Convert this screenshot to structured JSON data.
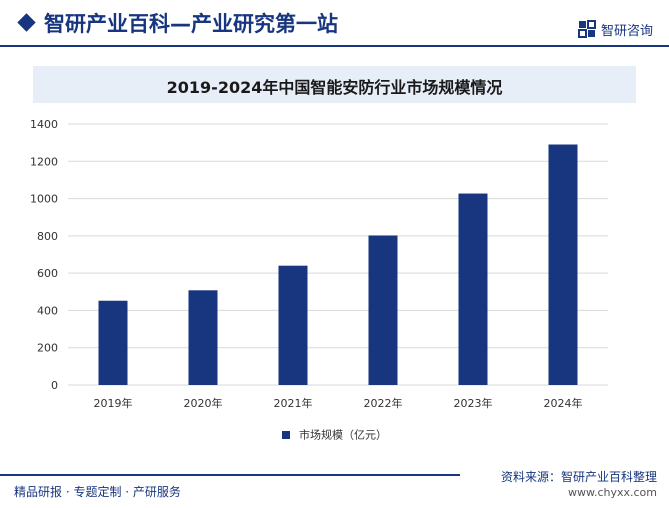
{
  "header": {
    "title": "智研产业百科—产业研究第一站",
    "brand": "智研咨询"
  },
  "chart_data": {
    "type": "bar",
    "title": "2019-2024年中国智能安防行业市场规模情况",
    "categories": [
      "2019年",
      "2020年",
      "2021年",
      "2022年",
      "2023年",
      "2024年"
    ],
    "series": [
      {
        "name": "市场规模（亿元）",
        "values": [
          452,
          508,
          640,
          802,
          1027,
          1290
        ]
      }
    ],
    "ylim": [
      0,
      1400
    ],
    "yticks": [
      0,
      200,
      400,
      600,
      800,
      1000,
      1200,
      1400
    ],
    "grid": true,
    "legend_position": "bottom",
    "bar_color": "#17367f",
    "grid_color": "#d9d9d9"
  },
  "footer": {
    "source": "资料来源：智研产业百科整理",
    "url": "www.chyxx.com",
    "services": "精品研报 · 专题定制 · 产研服务"
  },
  "colors": {
    "accent": "#17367f",
    "title_band": "#e7eef8"
  }
}
